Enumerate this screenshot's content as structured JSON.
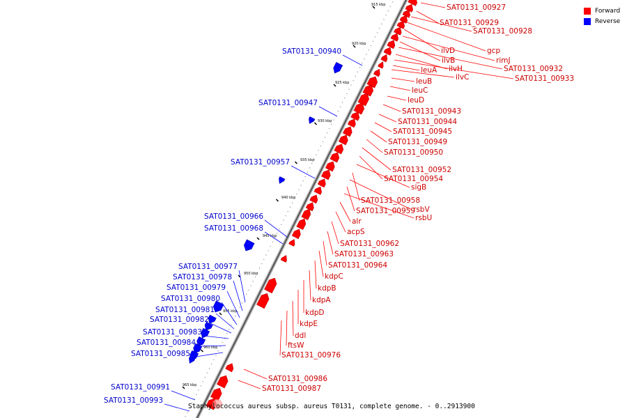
{
  "caption": "Staphylococcus aureus subsp. aureus T0131, complete genome. - 0..2913900",
  "legend": [
    {
      "label": "Forward",
      "color": "#ff0000"
    },
    {
      "label": "Reverse",
      "color": "#0000ff"
    }
  ],
  "colors": {
    "forward": "#ff0000",
    "reverse": "#0000ff",
    "backbone": "#555555"
  },
  "ticks": [
    "915 kbp",
    "920 kbp",
    "925 kbp",
    "930 kbp",
    "935 kbp",
    "940 kbp",
    "945 kbp",
    "950 kbp",
    "955 kbp",
    "960 kbp",
    "965 kbp"
  ],
  "forward_genes": [
    "SAT0131_00927",
    "SAT0131_00929",
    "SAT0131_00928",
    "gcp",
    "ilvD",
    "rimJ",
    "ilvB",
    "SAT0131_00932",
    "ilvH",
    "SAT0131_00933",
    "leuA",
    "ilvC",
    "leuB",
    "leuC",
    "leuD",
    "SAT0131_00943",
    "SAT0131_00944",
    "SAT0131_00945",
    "SAT0131_00949",
    "SAT0131_00950",
    "SAT0131_00952",
    "SAT0131_00954",
    "sigB",
    "SAT0131_00958",
    "rsbV",
    "SAT0131_00959",
    "rsbU",
    "alr",
    "acpS",
    "SAT0131_00962",
    "SAT0131_00963",
    "SAT0131_00964",
    "kdpC",
    "kdpB",
    "kdpA",
    "kdpD",
    "kdpE",
    "ddl",
    "ftsW",
    "SAT0131_00976",
    "SAT0131_00986",
    "SAT0131_00987"
  ],
  "reverse_genes": [
    "SAT0131_00940",
    "SAT0131_00947",
    "SAT0131_00957",
    "SAT0131_00966",
    "SAT0131_00968",
    "SAT0131_00977",
    "SAT0131_00978",
    "SAT0131_00979",
    "SAT0131_00980",
    "SAT0131_00981",
    "SAT0131_00982",
    "SAT0131_00983",
    "SAT0131_00984",
    "SAT0131_00985",
    "SAT0131_00991",
    "SAT0131_00993"
  ]
}
